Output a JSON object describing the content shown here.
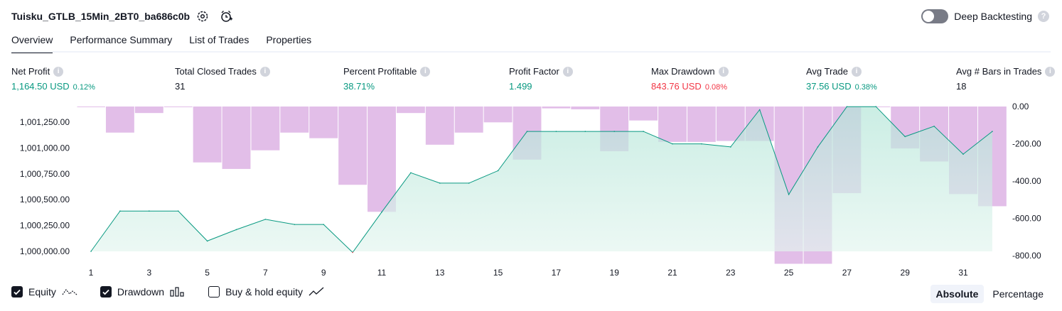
{
  "header": {
    "strategy_name": "Tuisku_GTLB_15Min_2BT0_ba686c0b",
    "deep_backtesting_label": "Deep Backtesting",
    "deep_backtesting_enabled": false
  },
  "tabs": [
    {
      "label": "Overview",
      "active": true
    },
    {
      "label": "Performance Summary",
      "active": false
    },
    {
      "label": "List of Trades",
      "active": false
    },
    {
      "label": "Properties",
      "active": false
    }
  ],
  "stats": [
    {
      "label": "Net Profit",
      "value": "1,164.50 USD",
      "pct": "0.12%",
      "color": "green"
    },
    {
      "label": "Total Closed Trades",
      "value": "31",
      "pct": "",
      "color": "dark"
    },
    {
      "label": "Percent Profitable",
      "value": "38.71%",
      "pct": "",
      "color": "green"
    },
    {
      "label": "Profit Factor",
      "value": "1.499",
      "pct": "",
      "color": "green"
    },
    {
      "label": "Max Drawdown",
      "value": "843.76 USD",
      "pct": "0.08%",
      "color": "red"
    },
    {
      "label": "Avg Trade",
      "value": "37.56 USD",
      "pct": "0.38%",
      "color": "green"
    },
    {
      "label": "Avg # Bars in Trades",
      "value": "18",
      "pct": "",
      "color": "dark"
    }
  ],
  "chart_data": {
    "type": "line",
    "x": [
      1,
      2,
      3,
      4,
      5,
      6,
      7,
      8,
      9,
      10,
      11,
      12,
      13,
      14,
      15,
      16,
      17,
      18,
      19,
      20,
      21,
      22,
      23,
      24,
      25,
      26,
      27,
      28,
      29,
      30,
      31,
      32
    ],
    "x_tick_labels": [
      "1",
      "3",
      "5",
      "7",
      "9",
      "11",
      "13",
      "15",
      "17",
      "19",
      "21",
      "23",
      "25",
      "27",
      "29",
      "31"
    ],
    "left_axis": {
      "ticks": [
        "1,000,000.00",
        "1,000,250.00",
        "1,000,500.00",
        "1,000,750.00",
        "1,001,000.00",
        "1,001,250.00"
      ],
      "ylim": [
        1000000,
        1001250
      ]
    },
    "right_axis": {
      "ticks": [
        "0.00",
        "-200.00",
        "-400.00",
        "-600.00",
        "-800.00"
      ],
      "ylim": [
        -800,
        0
      ]
    },
    "series": [
      {
        "name": "Equity",
        "color": "#089981",
        "values": [
          1000000,
          1000390,
          1000390,
          1000390,
          1000100,
          1000210,
          1000310,
          1000260,
          1000260,
          999990,
          1000380,
          1000760,
          1000660,
          1000660,
          1000780,
          1001160,
          1001160,
          1001160,
          1001160,
          1001160,
          1001040,
          1001040,
          1001010,
          1001370,
          1000550,
          1001010,
          1001400,
          1001400,
          1001110,
          1001210,
          1000940,
          1001160
        ]
      },
      {
        "name": "Drawdown",
        "color": "#ce93d8",
        "values": [
          0,
          -140,
          -35,
          0,
          -300,
          -335,
          -235,
          -140,
          -170,
          -420,
          -565,
          -35,
          -205,
          -140,
          -85,
          -285,
          -10,
          -15,
          -240,
          -75,
          -190,
          -190,
          -185,
          -185,
          -843.76,
          -843.76,
          -465,
          0,
          -225,
          -295,
          -470,
          -535
        ]
      }
    ]
  },
  "legend": [
    {
      "label": "Equity",
      "checked": true
    },
    {
      "label": "Drawdown",
      "checked": true
    },
    {
      "label": "Buy & hold equity",
      "checked": false
    }
  ],
  "mode": {
    "absolute_label": "Absolute",
    "percentage_label": "Percentage",
    "active": "Absolute"
  }
}
